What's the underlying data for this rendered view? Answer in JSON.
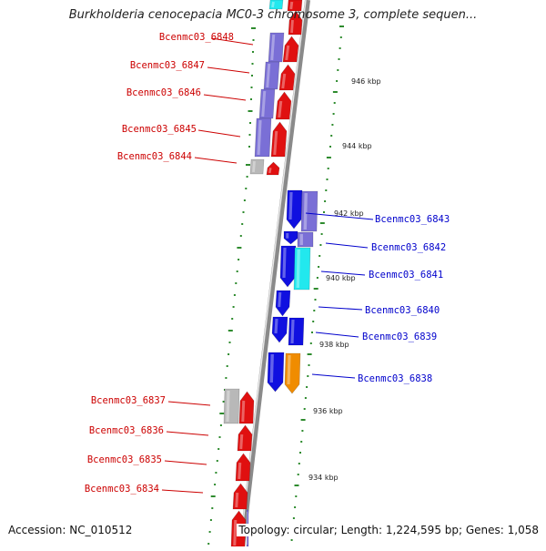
{
  "title": "Burkholderia cenocepacia MC0-3 chromosome 3, complete sequen...",
  "accession": "Accession: NC_010512",
  "topology": "Topology: circular; Length: 1,224,595 bp; Genes: 1,058",
  "colors": {
    "backbone": "#8a8a8a",
    "ruler": "#2e8b2e",
    "red": "#e01010",
    "blue": "#1010e0",
    "lavender": "#7a6fd6",
    "cyan": "#22e8ee",
    "orange": "#f08c00",
    "gray": "#b8b8b8",
    "label_red": "#cc0000",
    "label_blue": "#0000cc"
  },
  "ruler_labels": [
    "946 kbp",
    "944 kbp",
    "942 kbp",
    "940 kbp",
    "938 kbp",
    "936 kbp",
    "934 kbp"
  ],
  "genes": [
    {
      "name": "Bcenmc03_6848",
      "strand": "reverse"
    },
    {
      "name": "Bcenmc03_6847",
      "strand": "reverse"
    },
    {
      "name": "Bcenmc03_6846",
      "strand": "reverse"
    },
    {
      "name": "Bcenmc03_6845",
      "strand": "reverse"
    },
    {
      "name": "Bcenmc03_6844",
      "strand": "reverse"
    },
    {
      "name": "Bcenmc03_6843",
      "strand": "forward"
    },
    {
      "name": "Bcenmc03_6842",
      "strand": "forward"
    },
    {
      "name": "Bcenmc03_6841",
      "strand": "forward"
    },
    {
      "name": "Bcenmc03_6840",
      "strand": "forward"
    },
    {
      "name": "Bcenmc03_6839",
      "strand": "forward"
    },
    {
      "name": "Bcenmc03_6838",
      "strand": "forward"
    },
    {
      "name": "Bcenmc03_6837",
      "strand": "reverse"
    },
    {
      "name": "Bcenmc03_6836",
      "strand": "reverse"
    },
    {
      "name": "Bcenmc03_6835",
      "strand": "reverse"
    },
    {
      "name": "Bcenmc03_6834",
      "strand": "reverse"
    }
  ]
}
